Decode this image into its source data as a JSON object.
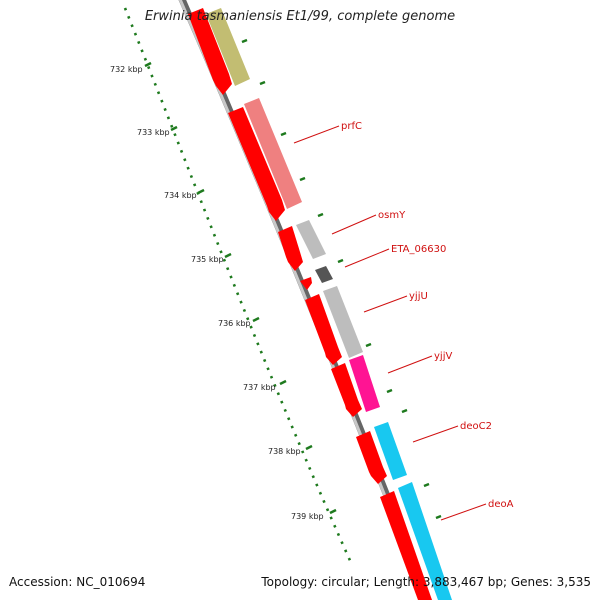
{
  "title": "Erwinia tasmaniensis Et1/99, complete genome",
  "accession_text": "Accession: NC_010694",
  "summary_text": "Topology: circular; Length: 3,883,467 bp; Genes: 3,535",
  "ticks": [
    "732 kbp",
    "733 kbp",
    "734 kbp",
    "735 kbp",
    "736 kbp",
    "737 kbp",
    "738 kbp",
    "739 kbp"
  ],
  "gene_labels": [
    "prfC",
    "osmY",
    "ETA_06630",
    "yjjU",
    "yjjV",
    "deoC2",
    "deoA"
  ],
  "colors": {
    "backbone": "#8a8a8a",
    "tick": "#1e7a1e",
    "cds": "#ff0000",
    "label": "#d01010",
    "olive": "#c2bd72",
    "pink": "#ef8080",
    "gray": "#bdbdbd",
    "darkgray": "#555555",
    "magenta": "#ff1493",
    "cyan": "#18c8f0"
  }
}
